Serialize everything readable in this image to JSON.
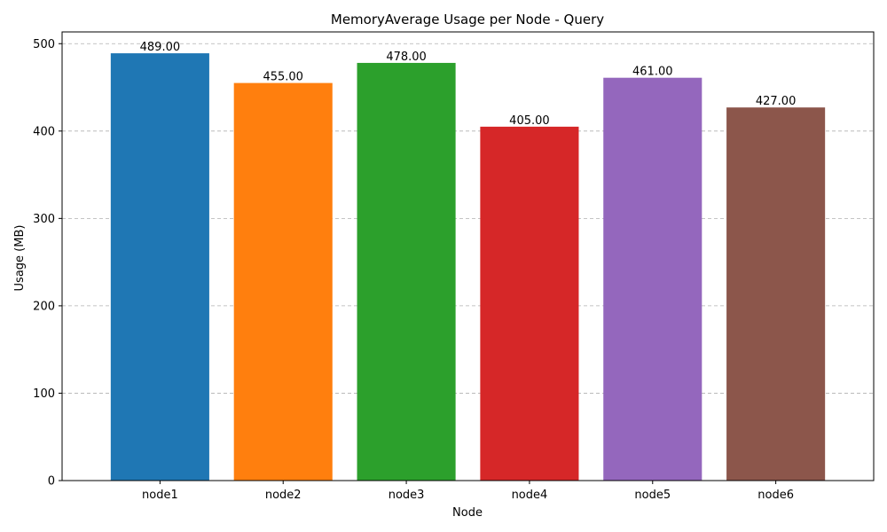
{
  "chart_data": {
    "type": "bar",
    "title": "MemoryAverage  Usage per Node - Query",
    "xlabel": "Node",
    "ylabel": "Usage (MB)",
    "categories": [
      "node1",
      "node2",
      "node3",
      "node4",
      "node5",
      "node6"
    ],
    "values": [
      489,
      455,
      478,
      405,
      461,
      427
    ],
    "data_labels": [
      "489.00",
      "455.00",
      "478.00",
      "405.00",
      "461.00",
      "427.00"
    ],
    "colors": [
      "#1f77b4",
      "#ff7f0e",
      "#2ca02c",
      "#d62728",
      "#9467bd",
      "#8c564b"
    ],
    "ylim": [
      0,
      513.45
    ],
    "yticks": [
      0,
      100,
      200,
      300,
      400,
      500
    ],
    "grid": "y-dashed",
    "legend": "none"
  }
}
